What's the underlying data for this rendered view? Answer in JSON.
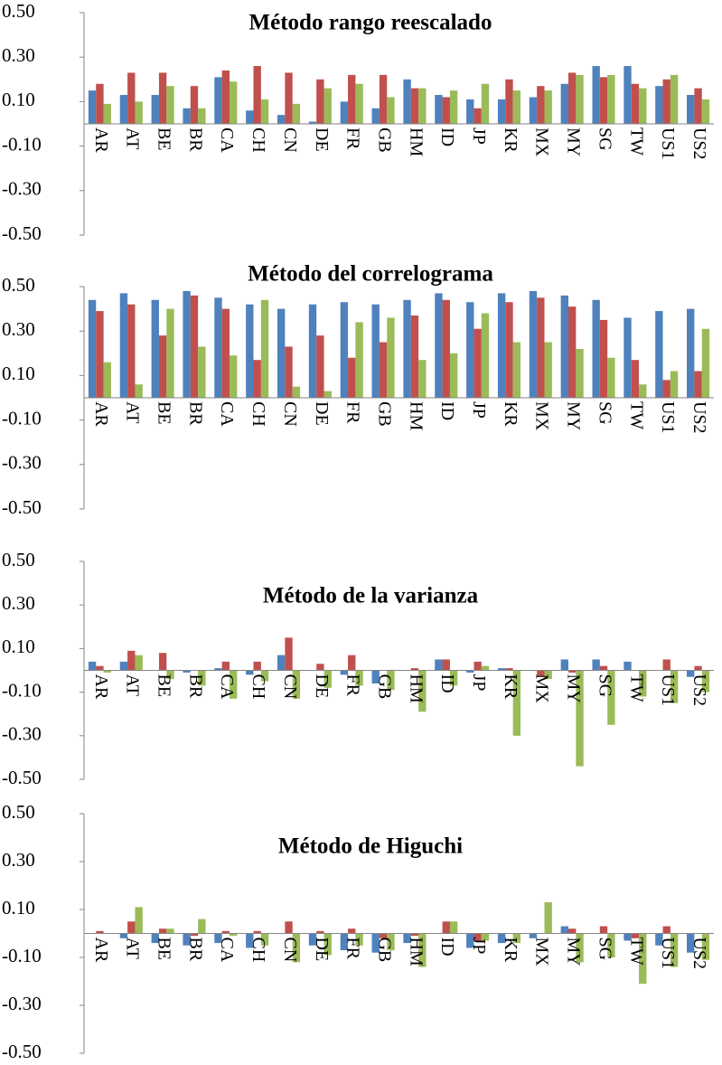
{
  "chart_data": [
    {
      "type": "bar",
      "title": "Método rango reescalado",
      "categories": [
        "AR",
        "AT",
        "BE",
        "BR",
        "CA",
        "CH",
        "CN",
        "DE",
        "FR",
        "GB",
        "HM",
        "ID",
        "JP",
        "KR",
        "MX",
        "MY",
        "SG",
        "TW",
        "US1",
        "US2"
      ],
      "series": [
        {
          "color": "#4f81bd",
          "values": [
            0.15,
            0.13,
            0.13,
            0.07,
            0.21,
            0.06,
            0.04,
            0.01,
            0.1,
            0.07,
            0.2,
            0.13,
            0.11,
            0.11,
            0.12,
            0.18,
            0.26,
            0.26,
            0.17,
            0.13
          ]
        },
        {
          "color": "#c0504d",
          "values": [
            0.18,
            0.23,
            0.23,
            0.17,
            0.24,
            0.26,
            0.23,
            0.2,
            0.22,
            0.22,
            0.16,
            0.12,
            0.07,
            0.2,
            0.17,
            0.23,
            0.21,
            0.18,
            0.2,
            0.16
          ]
        },
        {
          "color": "#9bbb59",
          "values": [
            0.09,
            0.1,
            0.17,
            0.07,
            0.19,
            0.11,
            0.09,
            0.16,
            0.18,
            0.12,
            0.16,
            0.15,
            0.18,
            0.15,
            0.15,
            0.22,
            0.22,
            0.16,
            0.22,
            0.11
          ]
        }
      ],
      "ylim": [
        -0.5,
        0.5
      ],
      "yticks": [
        {
          "value": -0.5,
          "label": "-0.50"
        },
        {
          "value": -0.3,
          "label": "-0.30"
        },
        {
          "value": -0.1,
          "label": "-0.10"
        },
        {
          "value": 0.1,
          "label": "0.10"
        },
        {
          "value": 0.3,
          "label": "0.30"
        },
        {
          "value": 0.5,
          "label": "0.50"
        }
      ],
      "negative_tick_color": "#ff0000"
    },
    {
      "type": "bar",
      "title": "Método del correlograma",
      "categories": [
        "AR",
        "AT",
        "BE",
        "BR",
        "CA",
        "CH",
        "CN",
        "DE",
        "FR",
        "GB",
        "HM",
        "ID",
        "JP",
        "KR",
        "MX",
        "MY",
        "SG",
        "TW",
        "US1",
        "US2"
      ],
      "series": [
        {
          "color": "#4f81bd",
          "values": [
            0.44,
            0.47,
            0.44,
            0.48,
            0.45,
            0.42,
            0.4,
            0.42,
            0.43,
            0.42,
            0.44,
            0.47,
            0.43,
            0.47,
            0.48,
            0.46,
            0.44,
            0.36,
            0.39,
            0.4
          ]
        },
        {
          "color": "#c0504d",
          "values": [
            0.39,
            0.42,
            0.28,
            0.46,
            0.4,
            0.17,
            0.23,
            0.28,
            0.18,
            0.25,
            0.37,
            0.44,
            0.31,
            0.43,
            0.45,
            0.41,
            0.35,
            0.17,
            0.08,
            0.12
          ]
        },
        {
          "color": "#9bbb59",
          "values": [
            0.16,
            0.06,
            0.4,
            0.23,
            0.19,
            0.44,
            0.05,
            0.03,
            0.34,
            0.36,
            0.17,
            0.2,
            0.38,
            0.25,
            0.25,
            0.22,
            0.18,
            0.06,
            0.12,
            0.31
          ]
        }
      ],
      "ylim": [
        -0.5,
        0.5
      ],
      "yticks": [
        {
          "value": -0.5,
          "label": "-0.50"
        },
        {
          "value": -0.3,
          "label": "-0.30"
        },
        {
          "value": -0.1,
          "label": "-0.10"
        },
        {
          "value": 0.1,
          "label": "0.10"
        },
        {
          "value": 0.3,
          "label": "0.30"
        },
        {
          "value": 0.5,
          "label": "0.50"
        }
      ],
      "negative_tick_color": "#ff0000"
    },
    {
      "type": "bar",
      "title": "Método de la varianza",
      "categories": [
        "AR",
        "AT",
        "BE",
        "BR",
        "CA",
        "CH",
        "CN",
        "DE",
        "FR",
        "GB",
        "HM",
        "ID",
        "JP",
        "KR",
        "MX",
        "MY",
        "SG",
        "TW",
        "US1",
        "US2"
      ],
      "series": [
        {
          "color": "#4f81bd",
          "values": [
            0.04,
            0.04,
            0,
            -0.01,
            0.01,
            -0.02,
            0.07,
            0,
            -0.02,
            -0.06,
            0,
            0.05,
            -0.01,
            0.01,
            0,
            0.05,
            0.05,
            0.04,
            0,
            -0.03
          ]
        },
        {
          "color": "#c0504d",
          "values": [
            0.02,
            0.09,
            0.08,
            0,
            0.04,
            0.04,
            0.15,
            0.03,
            0.07,
            0,
            0.01,
            0.05,
            0.04,
            0.01,
            -0.03,
            -0.01,
            0.02,
            0,
            0.05,
            0.02
          ]
        },
        {
          "color": "#9bbb59",
          "values": [
            -0.01,
            0.07,
            -0.04,
            -0.07,
            -0.13,
            -0.05,
            -0.13,
            -0.08,
            -0.07,
            -0.09,
            -0.19,
            -0.07,
            0.02,
            -0.3,
            -0.04,
            -0.44,
            -0.25,
            -0.12,
            -0.15,
            -0.1
          ]
        }
      ],
      "ylim": [
        -0.5,
        0.5
      ],
      "yticks": [
        {
          "value": -0.5,
          "label": "-0.50"
        },
        {
          "value": -0.3,
          "label": "-0.30"
        },
        {
          "value": -0.1,
          "label": "-0.10"
        },
        {
          "value": 0.1,
          "label": "0.10"
        },
        {
          "value": 0.3,
          "label": "0.30"
        },
        {
          "value": 0.5,
          "label": "0.50"
        }
      ]
    },
    {
      "type": "bar",
      "title": "Método de Higuchi",
      "categories": [
        "AR",
        "AT",
        "BE",
        "BR",
        "CA",
        "CH",
        "CN",
        "DE",
        "FR",
        "GB",
        "HM",
        "ID",
        "JP",
        "KR",
        "MX",
        "MY",
        "SG",
        "TW",
        "US1",
        "US2"
      ],
      "series": [
        {
          "color": "#4f81bd",
          "values": [
            0,
            -0.02,
            -0.04,
            -0.05,
            -0.04,
            -0.06,
            0,
            -0.05,
            -0.07,
            -0.08,
            -0.04,
            0,
            -0.06,
            -0.04,
            -0.02,
            0.03,
            0,
            -0.03,
            -0.05,
            -0.08
          ]
        },
        {
          "color": "#c0504d",
          "values": [
            0.01,
            0.05,
            0.02,
            -0.01,
            0.01,
            0.01,
            0.05,
            0.01,
            0.02,
            -0.02,
            -0.01,
            0.05,
            -0.03,
            0,
            0,
            0.02,
            0.03,
            -0.02,
            0.03,
            0
          ]
        },
        {
          "color": "#9bbb59",
          "values": [
            0,
            0.11,
            0.02,
            0.06,
            -0.01,
            -0.05,
            -0.12,
            -0.09,
            -0.05,
            -0.07,
            -0.14,
            0.05,
            -0.03,
            -0.04,
            0.13,
            -0.12,
            -0.1,
            -0.21,
            -0.14,
            -0.11
          ]
        }
      ],
      "ylim": [
        -0.5,
        0.5
      ],
      "yticks": [
        {
          "value": -0.5,
          "label": "-0.50"
        },
        {
          "value": -0.3,
          "label": "-0.30"
        },
        {
          "value": -0.1,
          "label": "-0.10"
        },
        {
          "value": 0.1,
          "label": "0.10"
        },
        {
          "value": 0.3,
          "label": "0.30"
        },
        {
          "value": 0.5,
          "label": "0.50"
        }
      ]
    }
  ]
}
